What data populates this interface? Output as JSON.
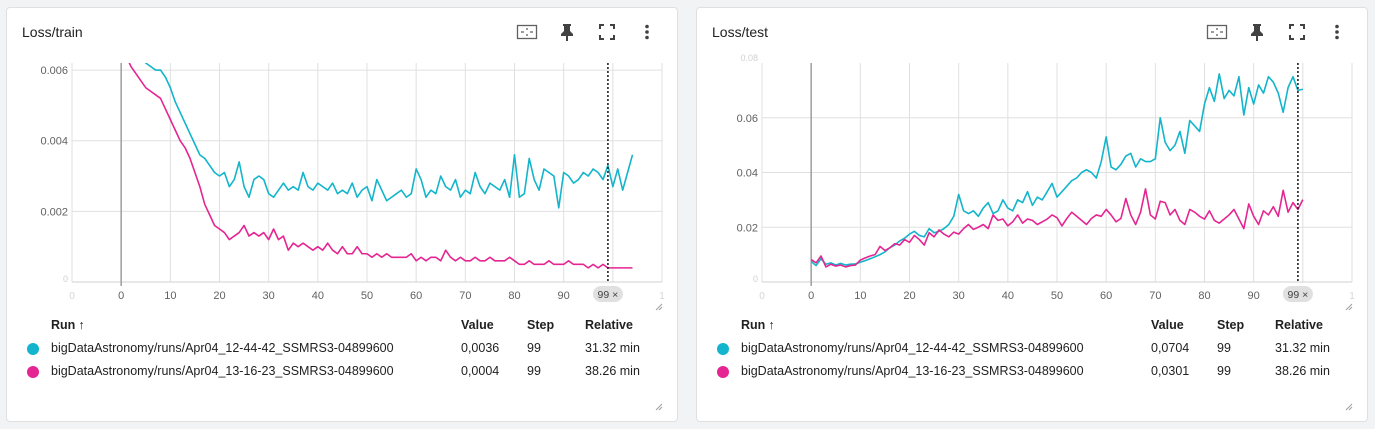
{
  "colors": {
    "series_a": "#12b5cb",
    "series_b": "#e52592",
    "grid": "#e0e0e0",
    "axis_text": "#616161",
    "chip": "#e0e0e0"
  },
  "icons": [
    "fit-domain-icon",
    "pin-icon",
    "fullscreen-icon",
    "more-vert-icon",
    "sort-up-icon",
    "resize-grip-icon"
  ],
  "cards": [
    {
      "id": "train",
      "title": "Loss/train",
      "step_chip": "99 ×",
      "table": {
        "headers": {
          "run": "Run",
          "sort": "↑",
          "value": "Value",
          "step": "Step",
          "relative": "Relative"
        },
        "rows": [
          {
            "run": "bigDataAstronomy/runs/Apr04_12-44-42_SSMRS3-04899600",
            "value": "0,0036",
            "step": "99",
            "relative": "31.32 min"
          },
          {
            "run": "bigDataAstronomy/runs/Apr04_13-16-23_SSMRS3-04899600",
            "value": "0,0004",
            "step": "99",
            "relative": "38.26 min"
          }
        ]
      }
    },
    {
      "id": "test",
      "title": "Loss/test",
      "step_chip": "99 ×",
      "table": {
        "headers": {
          "run": "Run",
          "sort": "↑",
          "value": "Value",
          "step": "Step",
          "relative": "Relative"
        },
        "rows": [
          {
            "run": "bigDataAstronomy/runs/Apr04_12-44-42_SSMRS3-04899600",
            "value": "0,0704",
            "step": "99",
            "relative": "31.32 min"
          },
          {
            "run": "bigDataAstronomy/runs/Apr04_13-16-23_SSMRS3-04899600",
            "value": "0,0301",
            "step": "99",
            "relative": "38.26 min"
          }
        ]
      }
    }
  ],
  "chart_data": [
    {
      "type": "line",
      "title": "Loss/train",
      "xlabel": "",
      "ylabel": "",
      "xlim": [
        -10,
        110
      ],
      "ylim": [
        0,
        0.0062
      ],
      "grid": true,
      "x_ticks": [
        "0",
        "10",
        "20",
        "30",
        "40",
        "50",
        "60",
        "70",
        "80",
        "90"
      ],
      "y_ticks": [
        "0.002",
        "0.004",
        "0.006"
      ],
      "x_ticks_faded": [
        "0",
        "1"
      ],
      "y_ticks_faded": [
        "0"
      ],
      "cursor_step": 99,
      "series": [
        {
          "values": [
            0.0075,
            0.0071,
            0.0068,
            0.0066,
            0.0064,
            0.0062,
            0.0061,
            0.006,
            0.006,
            0.0058,
            0.0055,
            0.0051,
            0.0048,
            0.0045,
            0.0042,
            0.0039,
            0.0036,
            0.0035,
            0.0033,
            0.0031,
            0.003,
            0.0031,
            0.0027,
            0.0029,
            0.0034,
            0.0027,
            0.0024,
            0.0029,
            0.003,
            0.0029,
            0.0025,
            0.0024,
            0.0026,
            0.0028,
            0.0026,
            0.0027,
            0.0026,
            0.0031,
            0.0027,
            0.0026,
            0.0028,
            0.0027,
            0.0026,
            0.0028,
            0.0025,
            0.0026,
            0.0025,
            0.0028,
            0.0024,
            0.0026,
            0.0027,
            0.0023,
            0.0029,
            0.0026,
            0.0023,
            0.0024,
            0.0025,
            0.0026,
            0.0024,
            0.0025,
            0.0032,
            0.0029,
            0.0024,
            0.0026,
            0.0025,
            0.003,
            0.0027,
            0.0026,
            0.0029,
            0.0024,
            0.0026,
            0.0025,
            0.0031,
            0.0027,
            0.0025,
            0.0028,
            0.0027,
            0.0026,
            0.0029,
            0.0024,
            0.0036,
            0.0024,
            0.0025,
            0.0035,
            0.0029,
            0.0026,
            0.0032,
            0.0031,
            0.003,
            0.0021,
            0.0031,
            0.003,
            0.0028,
            0.0029,
            0.0031,
            0.003,
            0.0032,
            0.0031,
            0.0029,
            0.0033,
            0.0027,
            0.0032,
            0.0026,
            0.0031,
            0.0036
          ]
        },
        {
          "values": [
            0.0069,
            0.0064,
            0.0061,
            0.0059,
            0.0057,
            0.0055,
            0.0054,
            0.0053,
            0.0052,
            0.0049,
            0.0046,
            0.0043,
            0.004,
            0.0038,
            0.0035,
            0.0031,
            0.0027,
            0.0022,
            0.0019,
            0.0016,
            0.0015,
            0.0014,
            0.0012,
            0.0013,
            0.0014,
            0.0016,
            0.0013,
            0.0014,
            0.0013,
            0.0014,
            0.0012,
            0.0015,
            0.0012,
            0.0013,
            0.0009,
            0.0011,
            0.001,
            0.0011,
            0.001,
            0.0009,
            0.001,
            0.0009,
            0.0011,
            0.0009,
            0.0008,
            0.001,
            0.0008,
            0.0008,
            0.001,
            0.0008,
            0.0008,
            0.0007,
            0.0008,
            0.0007,
            0.0008,
            0.0007,
            0.0007,
            0.0007,
            0.0007,
            0.0008,
            0.0006,
            0.0007,
            0.0006,
            0.0007,
            0.0007,
            0.0006,
            0.0009,
            0.0007,
            0.0006,
            0.0007,
            0.0006,
            0.0006,
            0.0007,
            0.0006,
            0.0006,
            0.0007,
            0.0006,
            0.0006,
            0.0006,
            0.0007,
            0.0006,
            0.0005,
            0.0005,
            0.0006,
            0.0005,
            0.0005,
            0.0005,
            0.0006,
            0.0005,
            0.0005,
            0.0005,
            0.0006,
            0.0005,
            0.0005,
            0.0005,
            0.0004,
            0.0005,
            0.0004,
            0.0005,
            0.0004,
            0.0004,
            0.0004,
            0.0004,
            0.0004,
            0.0004
          ]
        }
      ]
    },
    {
      "type": "line",
      "title": "Loss/test",
      "xlabel": "",
      "ylabel": "",
      "xlim": [
        -10,
        110
      ],
      "ylim": [
        0,
        0.08
      ],
      "grid": true,
      "x_ticks": [
        "0",
        "10",
        "20",
        "30",
        "40",
        "50",
        "60",
        "70",
        "80",
        "90"
      ],
      "y_ticks": [
        "0.02",
        "0.04",
        "0.06"
      ],
      "x_ticks_faded": [
        "0",
        "1"
      ],
      "y_ticks_faded": [
        "0",
        "0.08"
      ],
      "cursor_step": 99,
      "series": [
        {
          "values": [
            0.0075,
            0.006,
            0.0085,
            0.0065,
            0.007,
            0.0062,
            0.0068,
            0.0062,
            0.0065,
            0.0066,
            0.0072,
            0.0078,
            0.0085,
            0.0092,
            0.01,
            0.011,
            0.0125,
            0.0135,
            0.015,
            0.016,
            0.0175,
            0.0185,
            0.017,
            0.0165,
            0.0195,
            0.018,
            0.0185,
            0.0195,
            0.021,
            0.024,
            0.032,
            0.026,
            0.025,
            0.026,
            0.024,
            0.027,
            0.029,
            0.025,
            0.026,
            0.03,
            0.027,
            0.026,
            0.03,
            0.029,
            0.033,
            0.028,
            0.031,
            0.03,
            0.033,
            0.036,
            0.031,
            0.033,
            0.035,
            0.037,
            0.038,
            0.04,
            0.041,
            0.04,
            0.038,
            0.044,
            0.053,
            0.042,
            0.041,
            0.043,
            0.046,
            0.047,
            0.042,
            0.045,
            0.044,
            0.044,
            0.045,
            0.06,
            0.051,
            0.048,
            0.05,
            0.055,
            0.047,
            0.059,
            0.057,
            0.055,
            0.065,
            0.071,
            0.066,
            0.076,
            0.067,
            0.07,
            0.068,
            0.075,
            0.061,
            0.071,
            0.065,
            0.072,
            0.069,
            0.075,
            0.073,
            0.069,
            0.062,
            0.071,
            0.075,
            0.07,
            0.0704
          ]
        },
        {
          "values": [
            0.0082,
            0.007,
            0.0095,
            0.0055,
            0.0065,
            0.0058,
            0.0062,
            0.0055,
            0.006,
            0.0062,
            0.008,
            0.0088,
            0.0095,
            0.01,
            0.013,
            0.0115,
            0.0125,
            0.014,
            0.0135,
            0.0155,
            0.0145,
            0.017,
            0.0155,
            0.0135,
            0.018,
            0.0165,
            0.019,
            0.0175,
            0.0165,
            0.0182,
            0.0175,
            0.0195,
            0.021,
            0.0192,
            0.02,
            0.021,
            0.0195,
            0.0245,
            0.0225,
            0.023,
            0.0205,
            0.022,
            0.0245,
            0.0215,
            0.023,
            0.0225,
            0.021,
            0.022,
            0.023,
            0.0245,
            0.0235,
            0.0205,
            0.0232,
            0.0255,
            0.024,
            0.0225,
            0.021,
            0.0232,
            0.0245,
            0.024,
            0.0265,
            0.0245,
            0.022,
            0.0232,
            0.0305,
            0.0245,
            0.021,
            0.0255,
            0.034,
            0.0245,
            0.023,
            0.0295,
            0.029,
            0.0245,
            0.0265,
            0.0225,
            0.021,
            0.0265,
            0.0255,
            0.024,
            0.023,
            0.026,
            0.0225,
            0.0215,
            0.023,
            0.0245,
            0.0265,
            0.023,
            0.0195,
            0.0285,
            0.024,
            0.021,
            0.026,
            0.0245,
            0.0275,
            0.024,
            0.0335,
            0.0255,
            0.029,
            0.0265,
            0.0301
          ]
        }
      ]
    }
  ]
}
